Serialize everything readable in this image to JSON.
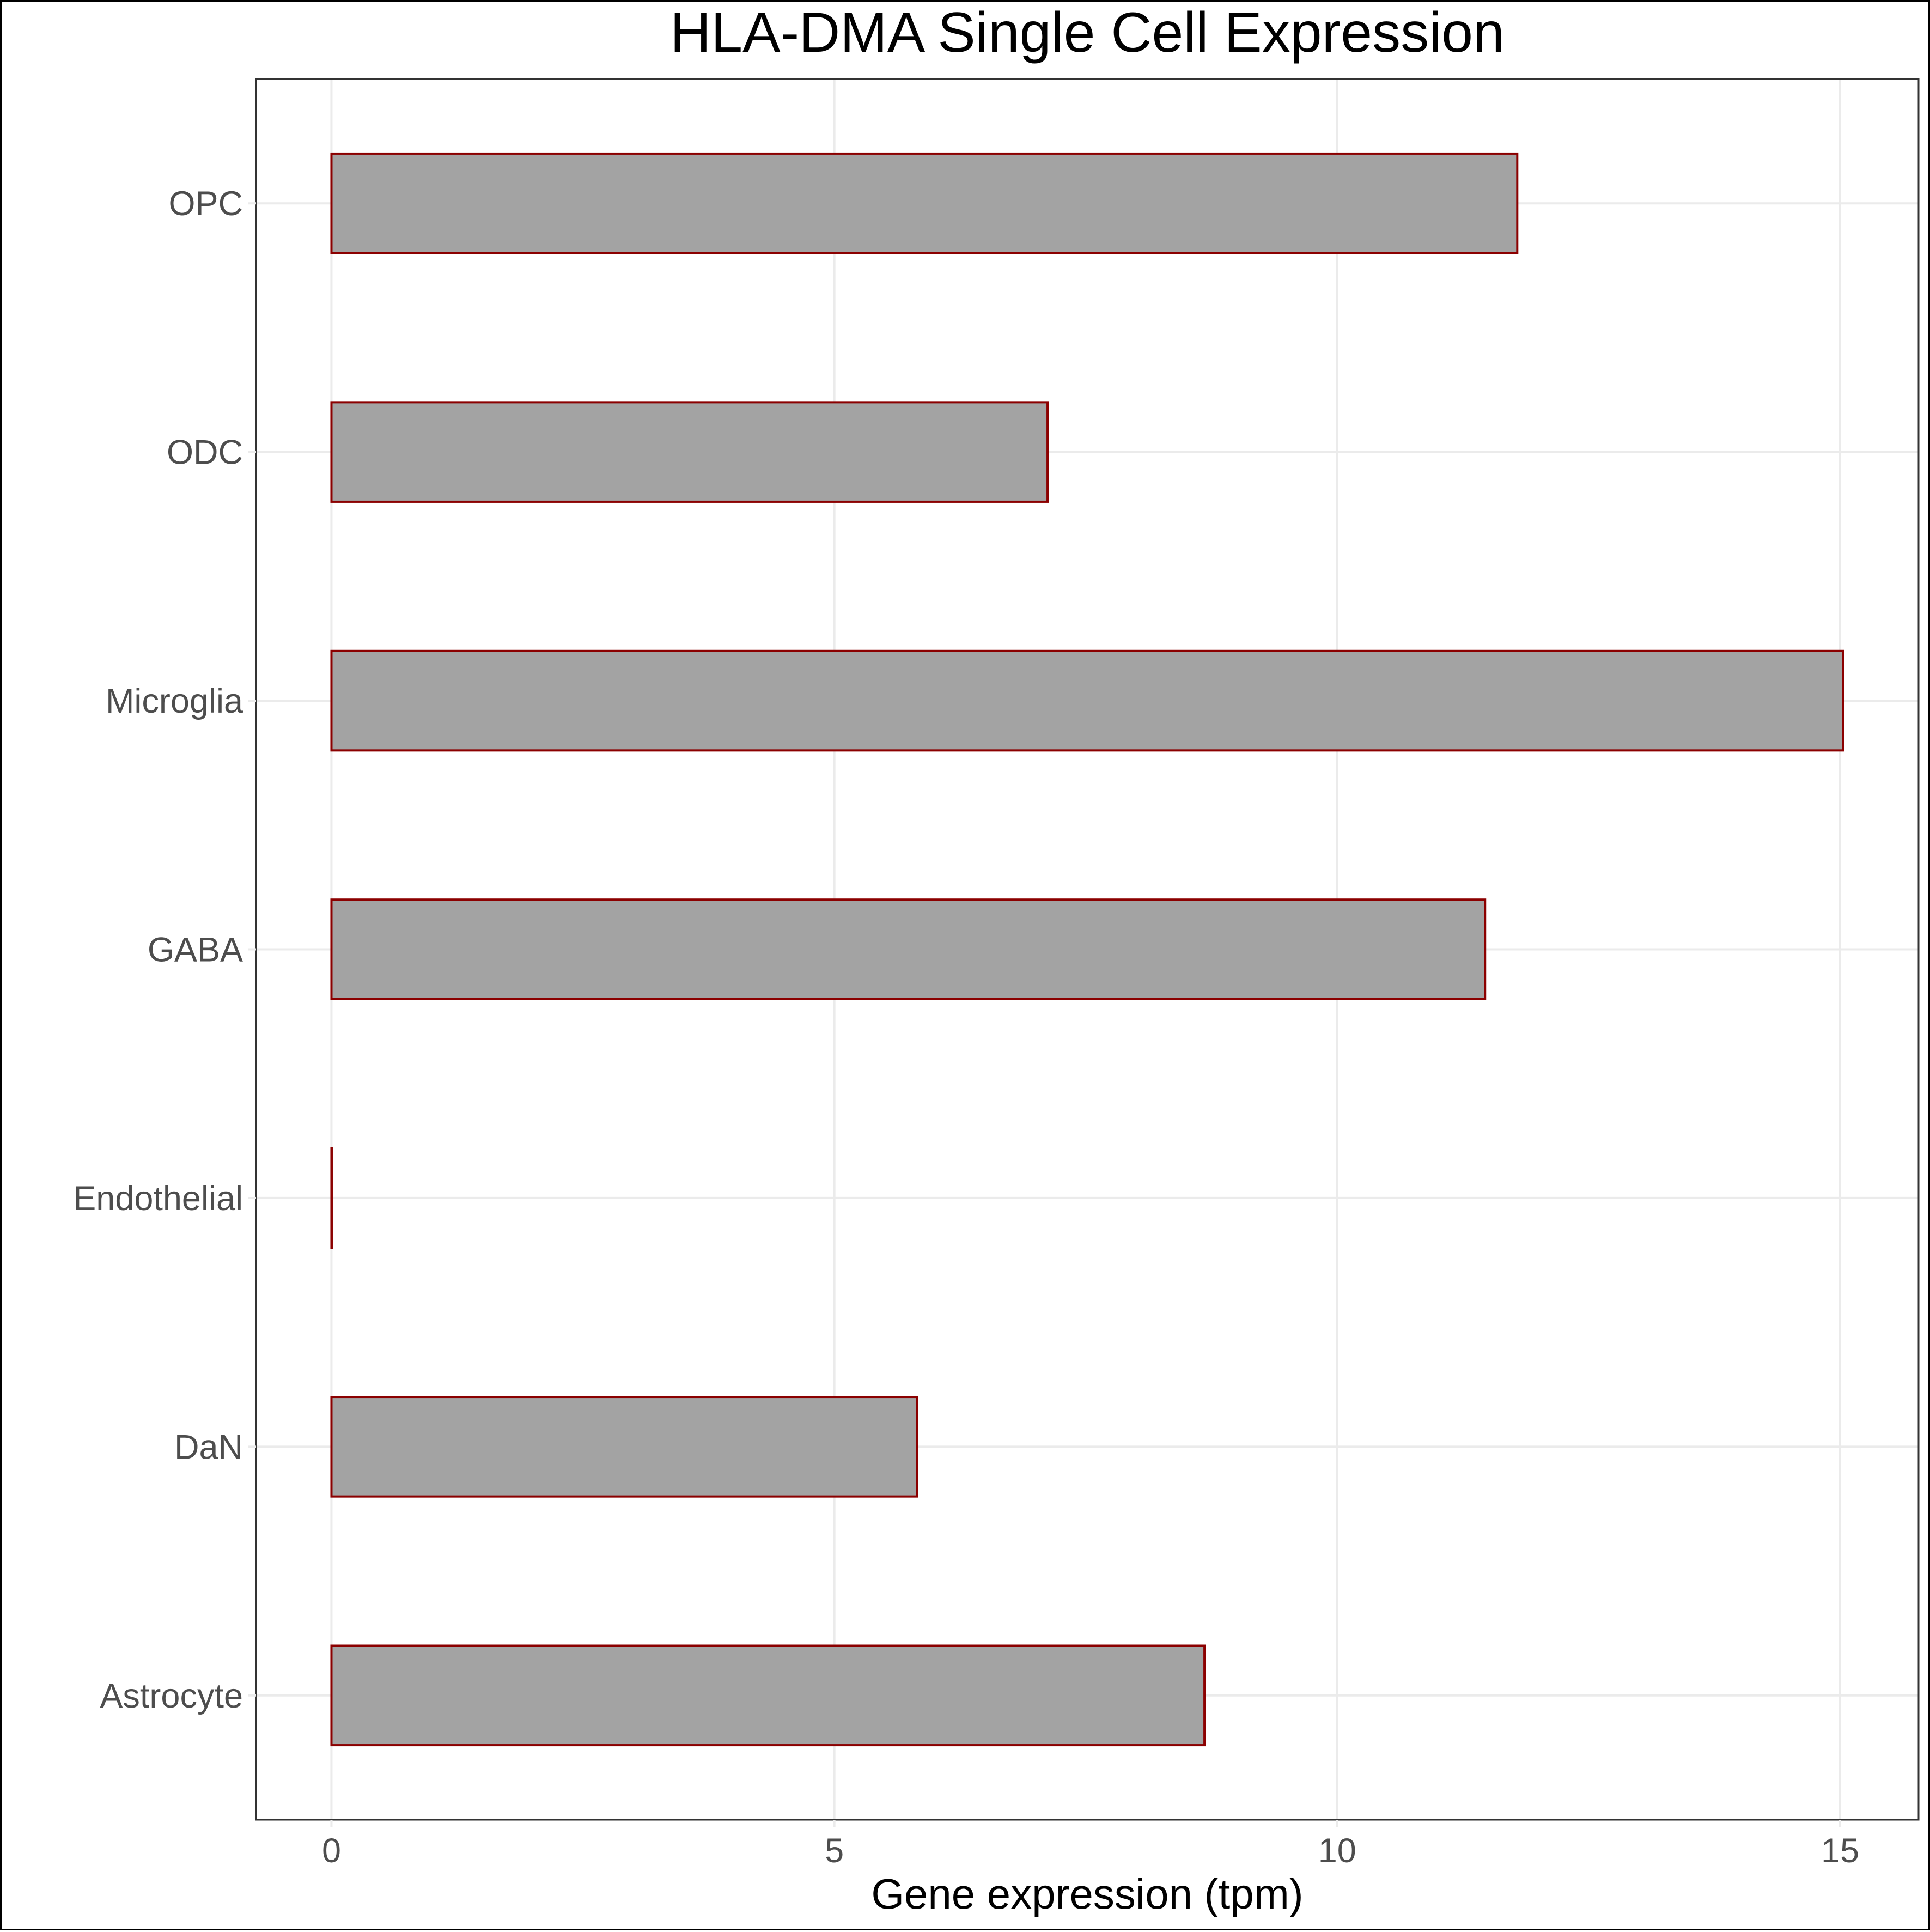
{
  "chart_data": {
    "type": "bar",
    "orientation": "horizontal",
    "title": "HLA-DMA Single Cell Expression",
    "xlabel": "Gene expression (tpm)",
    "ylabel": "",
    "categories": [
      "Astrocyte",
      "DaN",
      "Endothelial",
      "GABA",
      "Microglia",
      "ODC",
      "OPC"
    ],
    "values": [
      8.68,
      5.82,
      0.0,
      11.47,
      15.03,
      7.12,
      11.79
    ],
    "xlim": [
      -0.75,
      15.78
    ],
    "xticks": [
      0,
      5,
      10,
      15
    ],
    "xtick_labels": [
      "0",
      "5",
      "10",
      "15"
    ],
    "grid": true,
    "legend": "none",
    "colors": {
      "bar_fill": "#a3a3a3",
      "bar_outline": "#8b0000",
      "grid": "#ebebeb",
      "panel_border": "#333333",
      "tick_label": "#4d4d4d"
    }
  }
}
